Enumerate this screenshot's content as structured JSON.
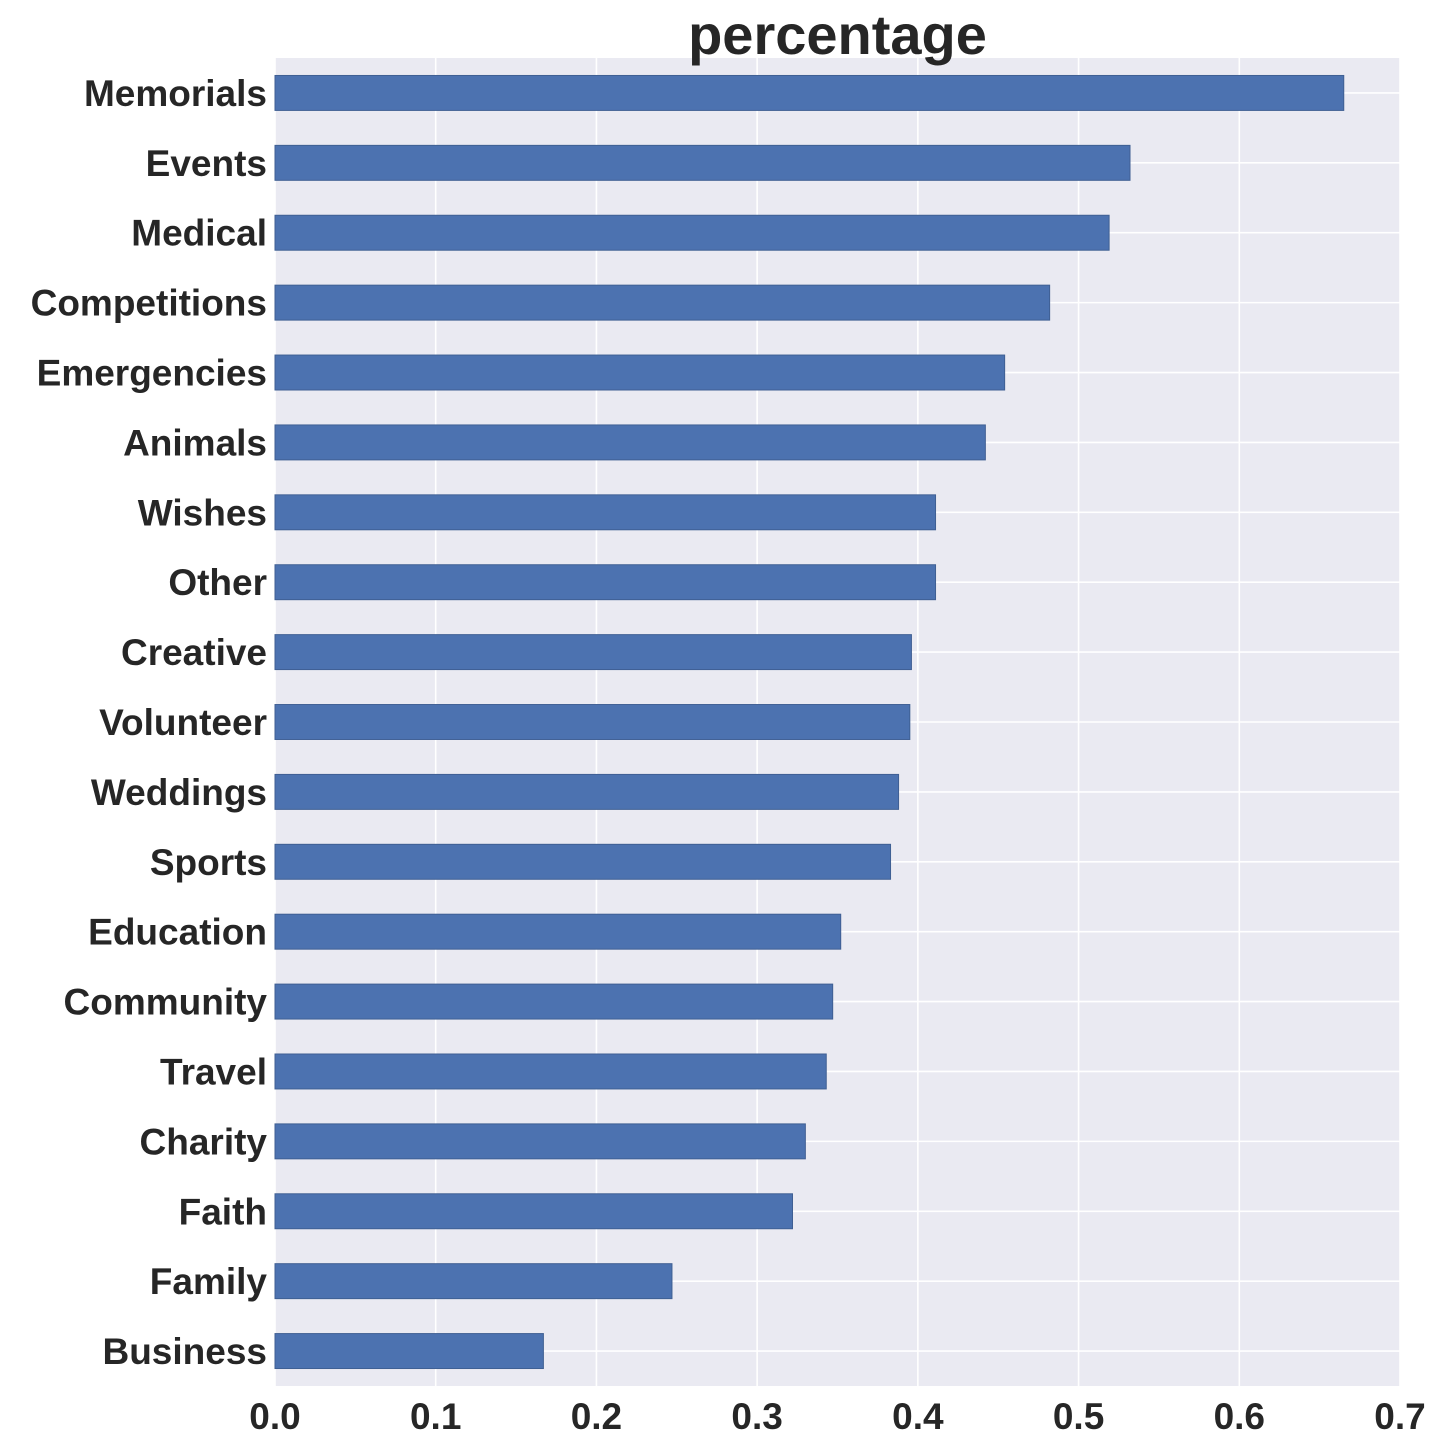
{
  "chart_data": {
    "type": "bar",
    "orientation": "horizontal",
    "title": "percentage",
    "xlabel": "",
    "ylabel": "",
    "categories": [
      "Memorials",
      "Events",
      "Medical",
      "Competitions",
      "Emergencies",
      "Animals",
      "Wishes",
      "Other",
      "Creative",
      "Volunteer",
      "Weddings",
      "Sports",
      "Education",
      "Community",
      "Travel",
      "Charity",
      "Faith",
      "Family",
      "Business"
    ],
    "values": [
      0.665,
      0.532,
      0.519,
      0.482,
      0.454,
      0.442,
      0.411,
      0.411,
      0.396,
      0.395,
      0.388,
      0.383,
      0.352,
      0.347,
      0.343,
      0.33,
      0.322,
      0.247,
      0.167
    ],
    "xlim": [
      0,
      0.7
    ],
    "xticks": [
      "0.0",
      "0.1",
      "0.2",
      "0.3",
      "0.4",
      "0.5",
      "0.6",
      "0.7"
    ],
    "grid": true,
    "legend": "none",
    "colors": {
      "bar": "#4c72b0",
      "background": "#eaeaf2",
      "grid": "#ffffff",
      "text": "#262626"
    }
  }
}
